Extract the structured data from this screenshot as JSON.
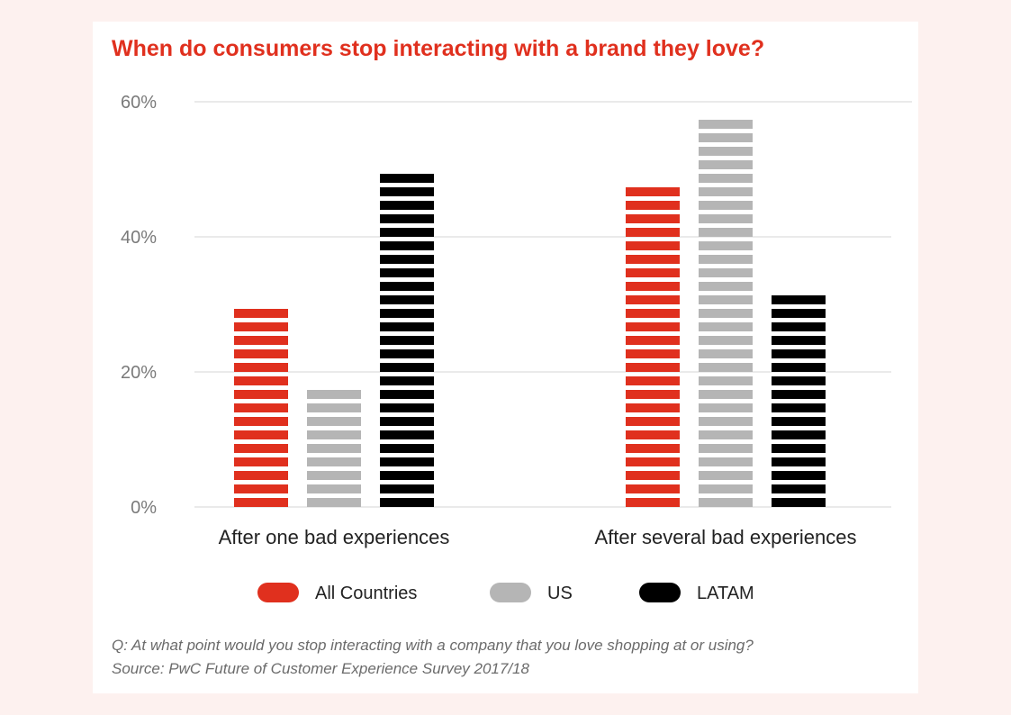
{
  "chart_data": {
    "type": "bar",
    "title": "When do consumers stop interacting with a brand they love?",
    "categories": [
      "After one bad experiences",
      "After several bad experiences"
    ],
    "series": [
      {
        "name": "All Countries",
        "values": [
          30,
          48
        ],
        "color": "#e0301e"
      },
      {
        "name": "US",
        "values": [
          18,
          58
        ],
        "color": "#b5b5b5"
      },
      {
        "name": "LATAM",
        "values": [
          50,
          32
        ],
        "color": "#000000"
      }
    ],
    "yticks": [
      "0%",
      "20%",
      "40%",
      "60%"
    ],
    "ylim": [
      0,
      60
    ],
    "unit": "%",
    "grid": true,
    "legend_position": "bottom"
  },
  "footnote": {
    "question": "Q: At what point would you stop interacting with a company that you love shopping at or using?",
    "source": "Source: PwC Future of Customer Experience Survey 2017/18"
  }
}
